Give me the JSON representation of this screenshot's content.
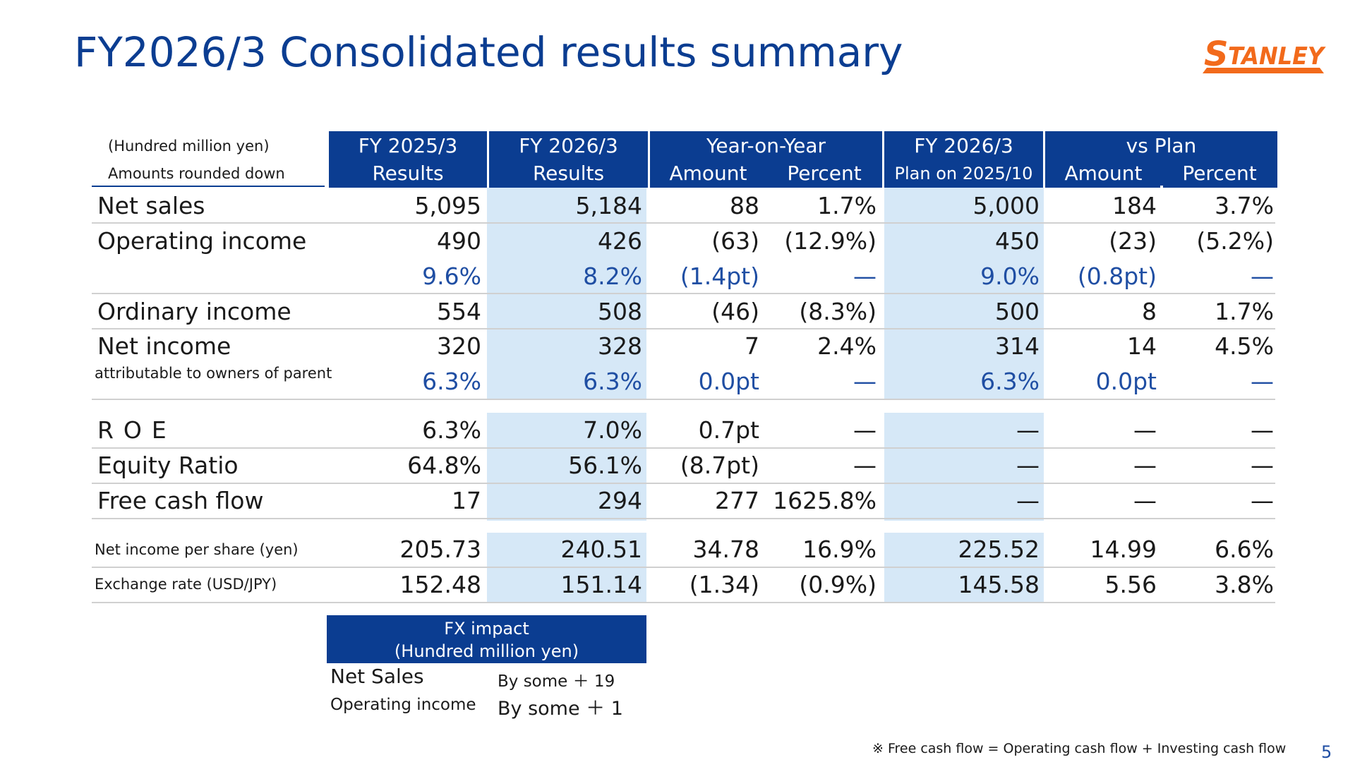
{
  "title": "FY2026/3 Consolidated results summary",
  "logo_text": "STANLEY",
  "units": {
    "line1": "(Hundred million yen)",
    "line2": "Amounts rounded down"
  },
  "headers": {
    "fy2025": {
      "line1": "FY 2025/3",
      "line2": "Results"
    },
    "fy2026": {
      "line1": "FY 2026/3",
      "line2": "Results"
    },
    "yoy": {
      "line1": "Year-on-Year",
      "amount": "Amount",
      "percent": "Percent"
    },
    "plan": {
      "line1": "FY 2026/3",
      "line2": "Plan on 2025/10"
    },
    "vsplan": {
      "line1": "vs Plan",
      "amount": "Amount",
      "percent": "Percent"
    }
  },
  "rows": [
    {
      "label": "Net sales",
      "values": [
        "5,095",
        "5,184",
        "88",
        "1.7%",
        "5,000",
        "184",
        "3.7%"
      ]
    },
    {
      "label": "Operating income",
      "values": [
        "490",
        "426",
        "(63)",
        "(12.9%)",
        "450",
        "(23)",
        "(5.2%)"
      ]
    },
    {
      "label": "",
      "values": [
        "9.6%",
        "8.2%",
        "(1.4pt)",
        "—",
        "9.0%",
        "(0.8pt)",
        "—"
      ]
    },
    {
      "label": "Ordinary income",
      "values": [
        "554",
        "508",
        "(46)",
        "(8.3%)",
        "500",
        "8",
        "1.7%"
      ]
    },
    {
      "label": "Net income",
      "values": [
        "320",
        "328",
        "7",
        "2.4%",
        "314",
        "14",
        "4.5%"
      ]
    },
    {
      "label": "attributable to owners of parent",
      "values": [
        "6.3%",
        "6.3%",
        "0.0pt",
        "—",
        "6.3%",
        "0.0pt",
        "—"
      ]
    },
    {
      "label": "ROE",
      "values": [
        "6.3%",
        "7.0%",
        "0.7pt",
        "—",
        "—",
        "—",
        "—"
      ]
    },
    {
      "label": "Equity Ratio",
      "values": [
        "64.8%",
        "56.1%",
        "(8.7pt)",
        "—",
        "—",
        "—",
        "—"
      ]
    },
    {
      "label": "Free cash flow",
      "values": [
        "17",
        "294",
        "277",
        "1625.8%",
        "—",
        "—",
        "—"
      ]
    },
    {
      "label": "Net income per share (yen)",
      "values": [
        "205.73",
        "240.51",
        "34.78",
        "16.9%",
        "225.52",
        "14.99",
        "6.6%"
      ]
    },
    {
      "label": "Exchange rate (USD/JPY)",
      "values": [
        "152.48",
        "151.14",
        "(1.34)",
        "(0.9%)",
        "145.58",
        "5.56",
        "3.8%"
      ]
    }
  ],
  "fx": {
    "header1": "FX impact",
    "header2": "(Hundred million yen)",
    "net_sales_label": "Net Sales",
    "net_sales_value": "By some ＋ 19",
    "op_income_label": "Operating income",
    "op_income_value": "By some ＋ 1"
  },
  "footnote": "※ Free cash flow = Operating cash flow + Investing cash flow",
  "page_number": "5",
  "colors": {
    "brand_blue": "#0b3d91",
    "value_blue": "#1f4ea3",
    "shade": "#d6e8f7",
    "logo_orange": "#f26a1b"
  }
}
